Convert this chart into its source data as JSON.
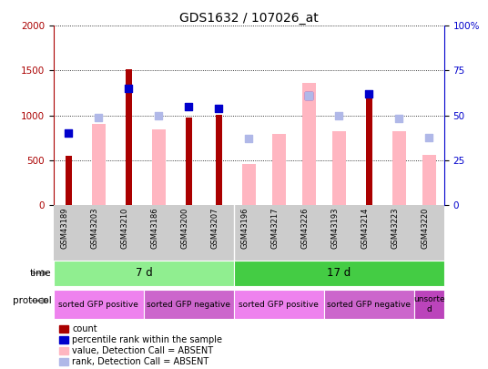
{
  "title": "GDS1632 / 107026_at",
  "samples": [
    "GSM43189",
    "GSM43203",
    "GSM43210",
    "GSM43186",
    "GSM43200",
    "GSM43207",
    "GSM43196",
    "GSM43217",
    "GSM43226",
    "GSM43193",
    "GSM43214",
    "GSM43223",
    "GSM43220"
  ],
  "count_values": [
    550,
    0,
    1510,
    0,
    980,
    1010,
    0,
    0,
    0,
    0,
    1200,
    0,
    0
  ],
  "rank_values": [
    800,
    0,
    1300,
    0,
    1100,
    1080,
    0,
    0,
    1220,
    0,
    1240,
    0,
    0
  ],
  "value_absent": [
    0,
    900,
    0,
    840,
    0,
    0,
    460,
    790,
    1360,
    820,
    0,
    820,
    555
  ],
  "rank_absent": [
    0,
    980,
    0,
    1000,
    0,
    0,
    740,
    0,
    1220,
    1000,
    0,
    960,
    750
  ],
  "ylim_left": [
    0,
    2000
  ],
  "ylim_right": [
    0,
    100
  ],
  "left_ticks": [
    0,
    500,
    1000,
    1500,
    2000
  ],
  "right_ticks": [
    0,
    25,
    50,
    75,
    100
  ],
  "right_tick_labels": [
    "0",
    "25",
    "50",
    "75",
    "100%"
  ],
  "time_groups": [
    {
      "label": "7 d",
      "start": 0,
      "end": 6,
      "color": "#90ee90"
    },
    {
      "label": "17 d",
      "start": 6,
      "end": 13,
      "color": "#44cc44"
    }
  ],
  "protocol_groups": [
    {
      "label": "sorted GFP positive",
      "start": 0,
      "end": 3,
      "color": "#ee82ee"
    },
    {
      "label": "sorted GFP negative",
      "start": 3,
      "end": 6,
      "color": "#cc66cc"
    },
    {
      "label": "sorted GFP positive",
      "start": 6,
      "end": 9,
      "color": "#ee82ee"
    },
    {
      "label": "sorted GFP negative",
      "start": 9,
      "end": 12,
      "color": "#cc66cc"
    },
    {
      "label": "unsorte\nd",
      "start": 12,
      "end": 13,
      "color": "#bb44bb"
    }
  ],
  "color_count": "#aa0000",
  "color_rank": "#0000cc",
  "color_value_absent": "#ffb6c1",
  "color_rank_absent": "#b0b8e8",
  "bg_xlabel": "#cccccc",
  "title_fontsize": 10,
  "tick_fontsize": 7.5,
  "xlabel_fontsize": 6,
  "legend_fontsize": 7,
  "row_label_fontsize": 7.5,
  "time_fontsize": 8.5,
  "proto_fontsize": 6.5
}
